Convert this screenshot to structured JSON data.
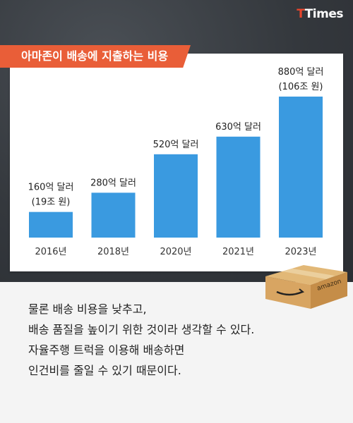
{
  "brand": {
    "prefix": "T",
    "rest": "Times"
  },
  "chart_data": {
    "type": "bar",
    "title": "아마존이 배송에 지출하는 비용",
    "categories": [
      "2016년",
      "2018년",
      "2020년",
      "2021년",
      "2023년"
    ],
    "values": [
      160,
      280,
      520,
      630,
      880
    ],
    "unit": "억 달러",
    "data_labels": [
      [
        "160억 달러",
        "(19조 원)"
      ],
      [
        "280억 달러"
      ],
      [
        "520억 달러"
      ],
      [
        "630억 달러"
      ],
      [
        "880억 달러",
        "(106조 원)"
      ]
    ],
    "ylim": [
      0,
      880
    ],
    "grid": false,
    "bar_color": "#3a9ae0"
  },
  "illustration": {
    "box_label": "amazon"
  },
  "body_text": [
    "물론 배송 비용을 낮추고,",
    "배송 품질을 높이기 위한 것이라 생각할 수 있다.",
    "자율주행 트럭을 이용해 배송하면",
    "인건비를 줄일 수 있기 때문이다."
  ]
}
